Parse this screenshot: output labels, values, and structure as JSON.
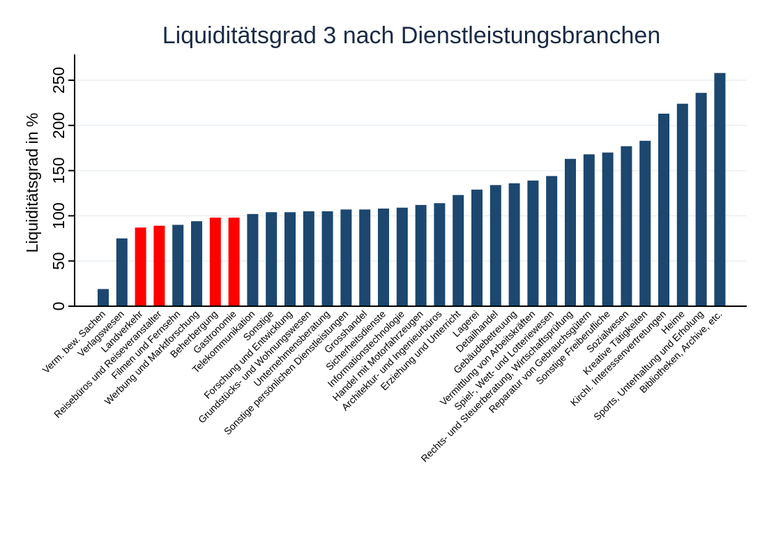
{
  "chart_data": {
    "type": "bar",
    "title": "Liquiditätsgrad 3 nach Dienstleistungsbranchen",
    "xlabel": "",
    "ylabel": "Liquiditätsgrad in %",
    "ylim": [
      0,
      270
    ],
    "yticks": [
      0,
      50,
      100,
      150,
      200,
      250
    ],
    "grid": true,
    "colors": {
      "default": "#1c476f",
      "highlight": "#ff0000",
      "title": "#1a2a44",
      "grid": "#eaeff3"
    },
    "categories": [
      "Verm. bew. Sachen",
      "Verlagswesen",
      "Landverkehr",
      "Reisebüros und Reiseveranstalter",
      "Filmen und Fernsehn",
      "Werbung und Marktforschung",
      "Beherbergung",
      "Gastronomie",
      "Telekommunikation",
      "Sonstige",
      "Forschung und Entwicklung",
      "Grundstücks- und Wohnungswesen",
      "Unternehmensberatung",
      "Sonstige persönlichen Dienstleistungen",
      "Grosshandel",
      "Sicherheitsdienste",
      "Informationstechnologie",
      "Handel mit Motorfahrzeugen",
      "Architektur- und Ingenieurbüros",
      "Erziehung und Unterricht",
      "Lagerei",
      "Detailhandel",
      "Gebäudebetreuung",
      "Vermittlung von Arbeitskräften",
      "Spiel-, Wett- und Lotteriewesen",
      "Rechts- und Steuerberatung, Wirtschaftsprüfung",
      "Reparatur von Gebrauchsgütern",
      "Sonstige Freiberufliche",
      "Sozialwesen",
      "Kreative Tätigkeiten",
      "Kirchl. Interessenvertretungen",
      "Heime",
      "Sports, Unterhaltung und Erholung",
      "Bibliotheken, Archive, etc."
    ],
    "values": [
      19,
      75,
      87,
      89,
      90,
      94,
      98,
      98,
      102,
      104,
      104,
      105,
      105,
      107,
      107,
      108,
      109,
      112,
      114,
      123,
      129,
      134,
      136,
      139,
      144,
      163,
      168,
      170,
      177,
      183,
      213,
      224,
      236,
      258
    ],
    "highlighted": [
      false,
      false,
      true,
      true,
      false,
      false,
      true,
      true,
      false,
      false,
      false,
      false,
      false,
      false,
      false,
      false,
      false,
      false,
      false,
      false,
      false,
      false,
      false,
      false,
      false,
      false,
      false,
      false,
      false,
      false,
      false,
      false,
      false,
      false
    ]
  }
}
